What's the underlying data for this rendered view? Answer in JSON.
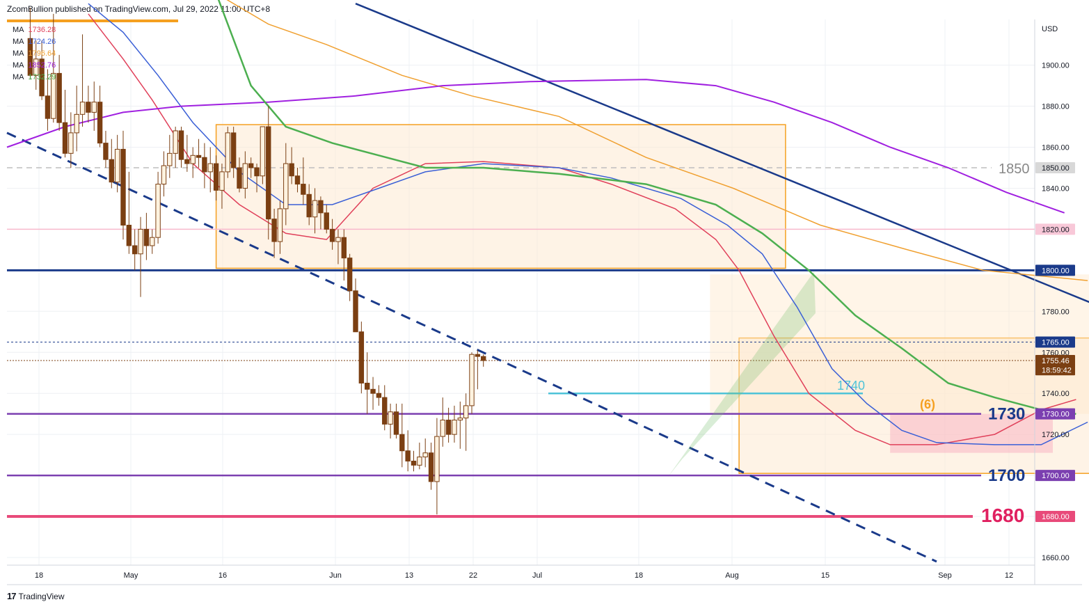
{
  "header": {
    "text": "ZcomBullion published on TradingView.com, Jul 29, 2022 11:00 UTC+8"
  },
  "footer": {
    "logo": "17",
    "brand": "TradingView"
  },
  "colors": {
    "up_candle_fill": "#fff3e0",
    "candle": "#7b3f12",
    "ma1": "#e0405a",
    "ma2": "#3a5fd6",
    "ma3": "#f0a030",
    "ma4": "#a020e0",
    "ma5": "#4caf50",
    "trend": "#1a3a8a",
    "box": "#f5a020",
    "purple_line": "#7b3fb0",
    "pink_line": "#e84a7a",
    "teal": "#4ec3d8"
  },
  "legend": [
    {
      "label": "MA",
      "value": "1736.28",
      "color": "#e0405a"
    },
    {
      "label": "MA",
      "value": "1724.26",
      "color": "#3a5fd6"
    },
    {
      "label": "MA",
      "value": "1796.64",
      "color": "#f0a030"
    },
    {
      "label": "MA",
      "value": "1852.76",
      "color": "#a020e0"
    },
    {
      "label": "MA",
      "value": "1732.29",
      "color": "#4caf50"
    }
  ],
  "chart_data": {
    "type": "candlestick",
    "y_axis": {
      "unit": "USD",
      "range": [
        1655,
        1925
      ],
      "ticks": [
        "1900.00",
        "1880.00",
        "1860.00",
        "1840.00",
        "1780.00",
        "1760.00",
        "1740.00",
        "1720.00",
        "1660.00"
      ]
    },
    "x_axis": {
      "ticks": [
        "18",
        "May",
        "16",
        "Jun",
        "13",
        "22",
        "Jul",
        "18",
        "Aug",
        "15",
        "Sep",
        "12"
      ]
    },
    "price_tags": [
      {
        "label": "1850.00",
        "value": 1850,
        "bg": "#d8d8d8",
        "fg": "#131722"
      },
      {
        "label": "1820.00",
        "value": 1820,
        "bg": "#f8c8d8",
        "fg": "#131722"
      },
      {
        "label": "1800.00",
        "value": 1800,
        "bg": "#1a3a8a",
        "fg": "#ffffff"
      },
      {
        "label": "1765.00",
        "value": 1765,
        "bg": "#1a3a8a",
        "fg": "#ffffff"
      },
      {
        "label": "1755.46",
        "value": 1756,
        "bg": "#7b3f12",
        "fg": "#ffffff"
      },
      {
        "label": "18:59:42",
        "value": 1751.5,
        "bg": "#7b3f12",
        "fg": "#ffffff"
      },
      {
        "label": "1730.00",
        "value": 1730,
        "bg": "#7b3fb0",
        "fg": "#ffffff"
      },
      {
        "label": "1700.00",
        "value": 1700,
        "bg": "#7b3fb0",
        "fg": "#ffffff"
      },
      {
        "label": "1680.00",
        "value": 1680,
        "bg": "#e84a7a",
        "fg": "#ffffff"
      }
    ],
    "level_labels": [
      {
        "text": "1850",
        "value": 1850,
        "color": "#888888"
      },
      {
        "text": "1730",
        "value": 1730,
        "color": "#1a3a8a"
      },
      {
        "text": "1700",
        "value": 1700,
        "color": "#1a3a8a"
      },
      {
        "text": "1680",
        "value": 1680,
        "color": "#e02060"
      }
    ],
    "annotations": [
      {
        "text": "1740",
        "color": "#4ec3d8"
      },
      {
        "text": "(6)",
        "color": "#f5a020"
      }
    ],
    "horizontal_levels": [
      1850,
      1820,
      1800,
      1765,
      1756,
      1730,
      1700,
      1680
    ],
    "candles": [
      [
        1913,
        1928,
        1893,
        1895
      ],
      [
        1895,
        1912,
        1888,
        1903
      ],
      [
        1903,
        1912,
        1883,
        1885
      ],
      [
        1885,
        1898,
        1868,
        1874
      ],
      [
        1874,
        1925,
        1872,
        1896
      ],
      [
        1896,
        1905,
        1868,
        1872
      ],
      [
        1872,
        1888,
        1855,
        1857
      ],
      [
        1857,
        1877,
        1850,
        1867
      ],
      [
        1867,
        1890,
        1858,
        1876
      ],
      [
        1876,
        1915,
        1870,
        1882
      ],
      [
        1882,
        1890,
        1872,
        1877
      ],
      [
        1877,
        1892,
        1868,
        1882
      ],
      [
        1882,
        1890,
        1860,
        1862
      ],
      [
        1862,
        1868,
        1850,
        1854
      ],
      [
        1854,
        1864,
        1840,
        1843
      ],
      [
        1843,
        1866,
        1838,
        1859
      ],
      [
        1859,
        1868,
        1815,
        1822
      ],
      [
        1822,
        1848,
        1808,
        1812
      ],
      [
        1812,
        1820,
        1800,
        1808
      ],
      [
        1808,
        1826,
        1787,
        1820
      ],
      [
        1820,
        1828,
        1805,
        1812
      ],
      [
        1812,
        1820,
        1808,
        1816
      ],
      [
        1816,
        1848,
        1813,
        1842
      ],
      [
        1842,
        1858,
        1836,
        1851
      ],
      [
        1851,
        1866,
        1845,
        1857
      ],
      [
        1857,
        1870,
        1850,
        1868
      ],
      [
        1868,
        1870,
        1850,
        1854
      ],
      [
        1854,
        1866,
        1848,
        1852
      ],
      [
        1852,
        1860,
        1845,
        1856
      ],
      [
        1856,
        1864,
        1850,
        1855
      ],
      [
        1855,
        1862,
        1840,
        1848
      ],
      [
        1848,
        1860,
        1838,
        1852
      ],
      [
        1852,
        1856,
        1834,
        1839
      ],
      [
        1839,
        1852,
        1830,
        1848
      ],
      [
        1848,
        1870,
        1845,
        1867
      ],
      [
        1867,
        1870,
        1845,
        1850
      ],
      [
        1850,
        1855,
        1838,
        1840
      ],
      [
        1840,
        1858,
        1835,
        1852
      ],
      [
        1852,
        1855,
        1845,
        1850
      ],
      [
        1850,
        1852,
        1838,
        1846
      ],
      [
        1846,
        1870,
        1842,
        1870
      ],
      [
        1870,
        1880,
        1815,
        1825
      ],
      [
        1825,
        1830,
        1806,
        1814
      ],
      [
        1814,
        1834,
        1808,
        1830
      ],
      [
        1830,
        1862,
        1822,
        1852
      ],
      [
        1852,
        1860,
        1842,
        1846
      ],
      [
        1846,
        1850,
        1838,
        1842
      ],
      [
        1842,
        1855,
        1832,
        1837
      ],
      [
        1837,
        1842,
        1822,
        1826
      ],
      [
        1826,
        1840,
        1818,
        1834
      ],
      [
        1834,
        1836,
        1820,
        1828
      ],
      [
        1828,
        1832,
        1818,
        1820
      ],
      [
        1820,
        1825,
        1810,
        1814
      ],
      [
        1814,
        1820,
        1803,
        1816
      ],
      [
        1816,
        1820,
        1795,
        1806
      ],
      [
        1806,
        1808,
        1785,
        1790
      ],
      [
        1790,
        1796,
        1770,
        1770
      ],
      [
        1770,
        1775,
        1740,
        1745
      ],
      [
        1745,
        1760,
        1730,
        1742
      ],
      [
        1742,
        1748,
        1732,
        1740
      ],
      [
        1740,
        1744,
        1734,
        1738
      ],
      [
        1738,
        1744,
        1722,
        1725
      ],
      [
        1725,
        1735,
        1718,
        1731
      ],
      [
        1731,
        1735,
        1718,
        1720
      ],
      [
        1720,
        1735,
        1704,
        1712
      ],
      [
        1712,
        1722,
        1702,
        1707
      ],
      [
        1707,
        1712,
        1702,
        1705
      ],
      [
        1705,
        1716,
        1703,
        1709
      ],
      [
        1709,
        1718,
        1704,
        1711
      ],
      [
        1711,
        1716,
        1693,
        1697
      ],
      [
        1697,
        1728,
        1681,
        1719
      ],
      [
        1719,
        1738,
        1714,
        1727
      ],
      [
        1727,
        1733,
        1716,
        1720
      ],
      [
        1720,
        1734,
        1716,
        1727
      ],
      [
        1727,
        1736,
        1713,
        1728
      ],
      [
        1728,
        1740,
        1712,
        1734
      ],
      [
        1734,
        1760,
        1730,
        1759
      ],
      [
        1759,
        1761,
        1742,
        1758
      ],
      [
        1758,
        1759,
        1753,
        1756
      ]
    ],
    "moving_averages": [
      {
        "name": "MA 1736.28",
        "color": "#e0405a",
        "points": [
          [
            14,
            1925
          ],
          [
            20,
            1903
          ],
          [
            25,
            1883
          ],
          [
            32,
            1852
          ],
          [
            40,
            1832
          ],
          [
            48,
            1818
          ],
          [
            55,
            1815
          ],
          [
            63,
            1840
          ],
          [
            72,
            1852
          ],
          [
            82,
            1853
          ],
          [
            95,
            1850
          ],
          [
            104,
            1842
          ],
          [
            115,
            1830
          ],
          [
            122,
            1815
          ],
          [
            126,
            1800
          ],
          [
            132,
            1768
          ],
          [
            138,
            1740
          ],
          [
            146,
            1722
          ],
          [
            152,
            1715
          ],
          [
            160,
            1715
          ],
          [
            170,
            1720
          ],
          [
            178,
            1732
          ],
          [
            184,
            1737
          ]
        ]
      },
      {
        "name": "MA 1724.26",
        "color": "#3a5fd6",
        "points": [
          [
            14,
            1930
          ],
          [
            20,
            1916
          ],
          [
            26,
            1895
          ],
          [
            32,
            1872
          ],
          [
            40,
            1848
          ],
          [
            48,
            1832
          ],
          [
            56,
            1832
          ],
          [
            64,
            1840
          ],
          [
            72,
            1848
          ],
          [
            82,
            1852
          ],
          [
            95,
            1850
          ],
          [
            104,
            1845
          ],
          [
            116,
            1835
          ],
          [
            124,
            1822
          ],
          [
            130,
            1808
          ],
          [
            136,
            1782
          ],
          [
            142,
            1752
          ],
          [
            148,
            1735
          ],
          [
            154,
            1722
          ],
          [
            160,
            1716
          ],
          [
            170,
            1715
          ],
          [
            178,
            1715
          ],
          [
            186,
            1726
          ]
        ]
      },
      {
        "name": "MA 1796.64",
        "color": "#f0a030",
        "points": [
          [
            36,
            1935
          ],
          [
            45,
            1920
          ],
          [
            55,
            1910
          ],
          [
            68,
            1895
          ],
          [
            80,
            1885
          ],
          [
            95,
            1875
          ],
          [
            110,
            1855
          ],
          [
            125,
            1840
          ],
          [
            140,
            1822
          ],
          [
            155,
            1810
          ],
          [
            168,
            1800
          ],
          [
            186,
            1795
          ]
        ]
      },
      {
        "name": "MA 1852.76",
        "color": "#a020e0",
        "points": [
          [
            0,
            1860
          ],
          [
            10,
            1870
          ],
          [
            20,
            1877
          ],
          [
            30,
            1880
          ],
          [
            45,
            1882
          ],
          [
            60,
            1885
          ],
          [
            75,
            1890
          ],
          [
            90,
            1892
          ],
          [
            110,
            1893
          ],
          [
            122,
            1890
          ],
          [
            132,
            1882
          ],
          [
            142,
            1872
          ],
          [
            152,
            1860
          ],
          [
            162,
            1850
          ],
          [
            172,
            1838
          ],
          [
            182,
            1828
          ]
        ]
      },
      {
        "name": "MA 1732.29",
        "color": "#4caf50",
        "points": [
          [
            36,
            1935
          ],
          [
            42,
            1890
          ],
          [
            48,
            1870
          ],
          [
            56,
            1862
          ],
          [
            64,
            1856
          ],
          [
            72,
            1850
          ],
          [
            82,
            1850
          ],
          [
            95,
            1847
          ],
          [
            110,
            1842
          ],
          [
            122,
            1832
          ],
          [
            130,
            1818
          ],
          [
            138,
            1800
          ],
          [
            146,
            1778
          ],
          [
            154,
            1762
          ],
          [
            162,
            1745
          ],
          [
            170,
            1738
          ],
          [
            178,
            1732
          ],
          [
            184,
            1730
          ]
        ]
      }
    ],
    "trendlines": [
      {
        "style": "solid",
        "from": [
          60,
          1930
        ],
        "to": [
          244,
          1718
        ]
      },
      {
        "style": "dashed",
        "from": [
          0,
          1867
        ],
        "to": [
          160,
          1658
        ]
      }
    ],
    "boxes": [
      {
        "x0": 36,
        "x1": 134,
        "y0": 1871,
        "y1": 1801,
        "stroke": "#f5a020",
        "fill": "rgba(254,232,205,0.5)"
      },
      {
        "x0": 126,
        "x1": 218,
        "y0": 1767,
        "y1": 1701,
        "stroke": "#f5a020",
        "fill": "rgba(254,232,205,0.5)"
      },
      {
        "x0": 121,
        "x1": 210,
        "y0": 1798,
        "y1": 1730,
        "stroke": "none",
        "fill": "rgba(254,232,205,0.45)"
      },
      {
        "x0": 152,
        "x1": 180,
        "y0": 1730,
        "y1": 1711,
        "stroke": "none",
        "fill": "rgba(248,180,195,0.55)"
      }
    ]
  }
}
